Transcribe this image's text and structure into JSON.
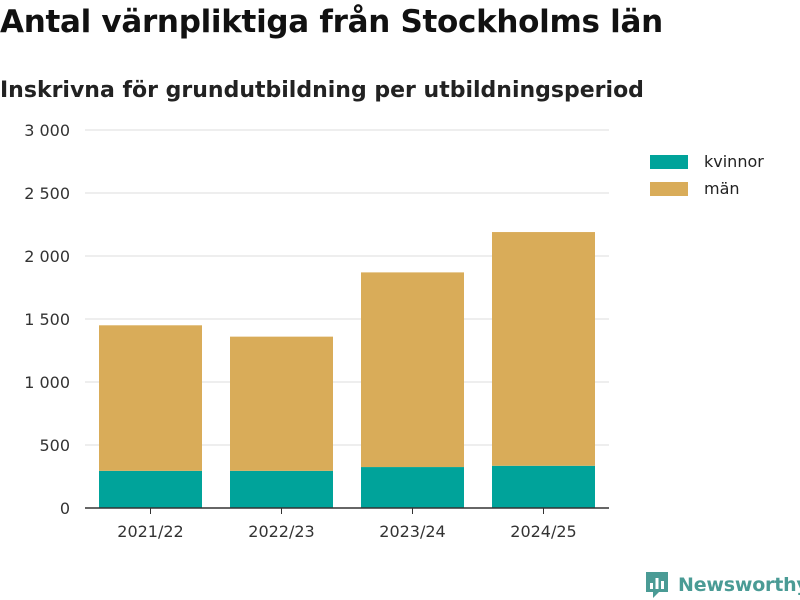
{
  "colors": {
    "kvinnor": "#00a39a",
    "man": "#d9ac59",
    "brand": "#4a9b95",
    "grid": "#dddddd",
    "axis": "#333333"
  },
  "chart_data": {
    "type": "bar",
    "stacked": true,
    "title": "Antal värnpliktiga från Stockholms län",
    "subtitle": "Inskrivna för grundutbildning per utbildningsperiod",
    "categories": [
      "2021/22",
      "2022/23",
      "2023/24",
      "2024/25"
    ],
    "series": [
      {
        "name": "kvinnor",
        "values": [
          295,
          295,
          325,
          335
        ]
      },
      {
        "name": "män",
        "values": [
          1155,
          1065,
          1545,
          1855
        ]
      }
    ],
    "ylim": [
      0,
      3000
    ],
    "yticks": [
      0,
      500,
      1000,
      1500,
      2000,
      2500,
      3000
    ],
    "ytick_labels": [
      "0",
      "500",
      "1 000",
      "1 500",
      "2 000",
      "2 500",
      "3 000"
    ],
    "xlabel": "",
    "ylabel": "",
    "grid": true,
    "legend": "top-right"
  },
  "legend": {
    "items": [
      {
        "label": "kvinnor",
        "color_key": "kvinnor"
      },
      {
        "label": "män",
        "color_key": "man"
      }
    ]
  },
  "brand": {
    "name": "Newsworthy",
    "icon": "newsworthy-logo-icon"
  }
}
